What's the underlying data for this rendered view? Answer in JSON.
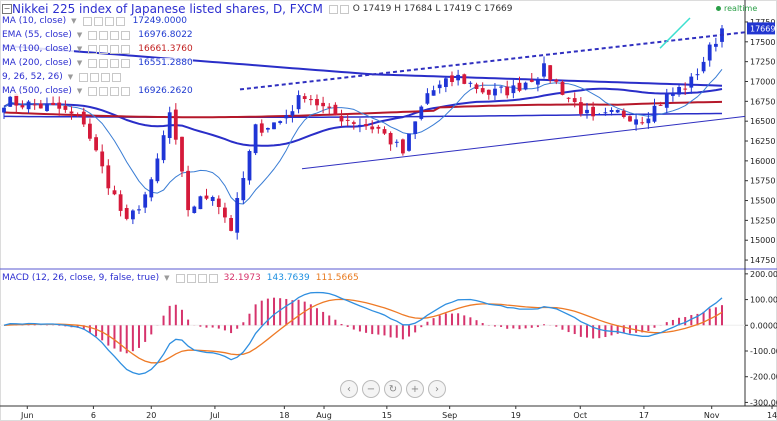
{
  "header": {
    "title": "Nikkei 225 index of Japanese listed shares, D, FXCM",
    "ohlc": "O 17419 H 17684 L 17419 C 17669"
  },
  "indicators": [
    {
      "label": "MA (10, close)",
      "value": "17249.0000",
      "color": "#1f3ad0"
    },
    {
      "label": "EMA (55, close)",
      "value": "16976.8022",
      "color": "#1f3ad0"
    },
    {
      "label": "MA (100, close)",
      "value": "16661.3760",
      "color": "#c22020"
    },
    {
      "label": "MA (200, close)",
      "value": "16551.2880",
      "color": "#1f3ad0"
    },
    {
      "label": "9, 26, 52, 26)",
      "value": "",
      "color": "#1f3ad0"
    },
    {
      "label": "MA (500, close)",
      "value": "16926.2620",
      "color": "#1f3ad0"
    }
  ],
  "macd": {
    "label": "MACD (12, 26, close, 9, false, true)",
    "val1": "32.1973",
    "val2": "143.7639",
    "val3": "111.5665",
    "colors": {
      "val1": "#d6336c",
      "val2": "#1e90e0",
      "val3": "#e87a1e"
    }
  },
  "realtime_label": "realtime",
  "price_badge": "17669",
  "colors": {
    "up_candle": "#1f35d6",
    "down_candle": "#d51a3a",
    "blue_ma": "#2a2ec8",
    "ma10": "#3a7dd4",
    "ma100": "#b5182a",
    "trend": "#3030c0",
    "macd_line": "#2f8fe0",
    "signal_line": "#ee7a26",
    "histogram": "#d6336c"
  },
  "nav_icons": [
    "chevron-left-icon",
    "zoom-out-icon",
    "reset-icon",
    "zoom-in-icon",
    "chevron-right-icon"
  ],
  "chart_data": [
    {
      "type": "candlestick",
      "title": "Nikkei 225 index of Japanese listed shares, D, FXCM",
      "x_ticks": [
        "Jun",
        "6",
        "20",
        "Jul",
        "18",
        "Aug",
        "15",
        "Sep",
        "19",
        "Oct",
        "17",
        "Nov",
        "14"
      ],
      "y_ticks": [
        14750,
        15000,
        15250,
        15500,
        15750,
        16000,
        16250,
        16500,
        16750,
        17000,
        17250,
        17500,
        17750
      ],
      "ylim": [
        14650,
        17800
      ],
      "last_price": 17669,
      "ohlc": {
        "open": 17419,
        "high": 17684,
        "low": 17419,
        "close": 17669
      },
      "series": [
        {
          "name": "MA (10, close)",
          "last": 17249.0
        },
        {
          "name": "EMA (55, close)",
          "last": 16976.8022
        },
        {
          "name": "MA (100, close)",
          "last": 16661.376
        },
        {
          "name": "MA (200, close)",
          "last": 16551.288
        },
        {
          "name": "MA (500, close)",
          "last": 16926.262
        }
      ]
    },
    {
      "type": "line",
      "title": "MACD (12, 26, close, 9, false, true)",
      "y_ticks": [
        -300,
        -200,
        -100,
        0,
        100,
        200
      ],
      "ylim": [
        -310,
        215
      ],
      "series": [
        {
          "name": "Histogram",
          "last": 32.1973
        },
        {
          "name": "MACD",
          "last": 143.7639
        },
        {
          "name": "Signal",
          "last": 111.5665
        }
      ]
    }
  ]
}
